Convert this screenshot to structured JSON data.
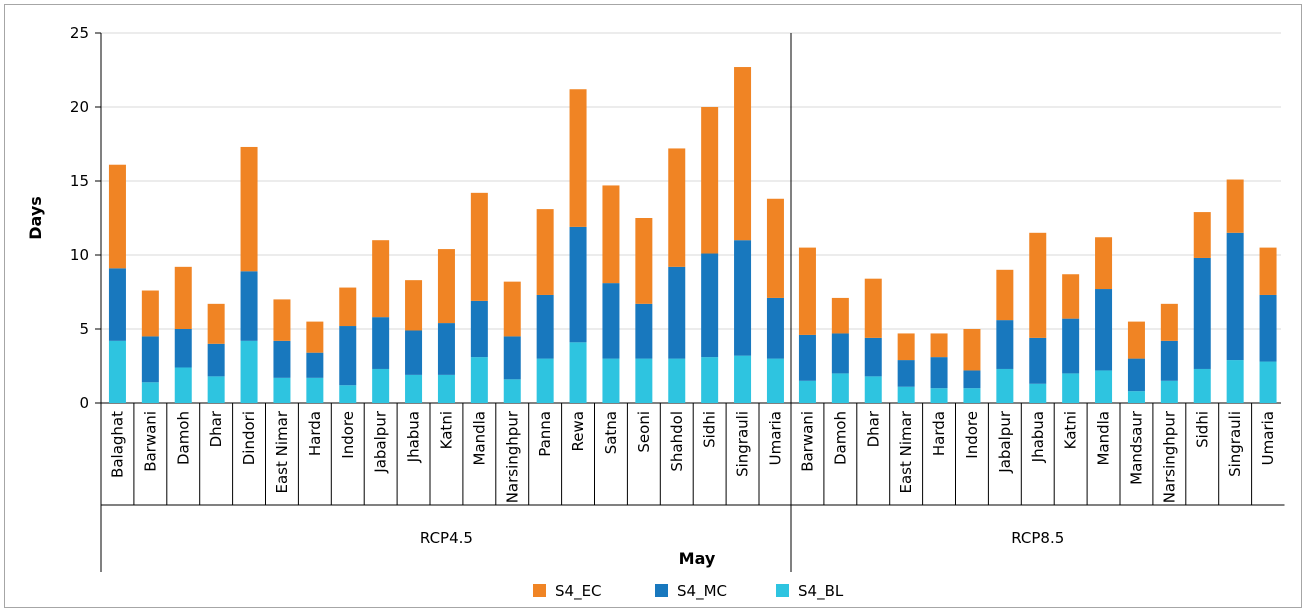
{
  "chart_data": {
    "type": "bar",
    "stacked": true,
    "xlabel": "May",
    "ylabel": "Days",
    "ylim": [
      0,
      25
    ],
    "yticks": [
      0,
      5,
      10,
      15,
      20,
      25
    ],
    "grid": true,
    "legend_position": "bottom",
    "groups": [
      {
        "label": "RCP4.5",
        "categories": [
          "Balaghat",
          "Barwani",
          "Damoh",
          "Dhar",
          "Dindori",
          "East Nimar",
          "Harda",
          "Indore",
          "Jabalpur",
          "Jhabua",
          "Katni",
          "Mandla",
          "Narsinghpur",
          "Panna",
          "Rewa",
          "Satna",
          "Seoni",
          "Shahdol",
          "Sidhi",
          "Singrauli",
          "Umaria"
        ],
        "series": [
          {
            "name": "S4_BL",
            "values": [
              4.2,
              1.4,
              2.4,
              1.8,
              4.2,
              1.7,
              1.7,
              1.2,
              2.3,
              1.9,
              1.9,
              3.1,
              1.6,
              3.0,
              4.1,
              3.0,
              3.0,
              3.0,
              3.1,
              3.2,
              3.0
            ]
          },
          {
            "name": "S4_MC",
            "values": [
              4.9,
              3.1,
              2.6,
              2.2,
              4.7,
              2.5,
              1.7,
              4.0,
              3.5,
              3.0,
              3.5,
              3.8,
              2.9,
              4.3,
              7.8,
              5.1,
              3.7,
              6.2,
              7.0,
              7.8,
              4.1
            ]
          },
          {
            "name": "S4_EC",
            "values": [
              7.0,
              3.1,
              4.2,
              2.7,
              8.4,
              2.8,
              2.1,
              2.6,
              5.2,
              3.4,
              5.0,
              7.3,
              3.7,
              5.8,
              9.3,
              6.6,
              5.8,
              8.0,
              9.9,
              11.7,
              6.7
            ]
          }
        ]
      },
      {
        "label": "RCP8.5",
        "categories": [
          "Barwani",
          "Damoh",
          "Dhar",
          "East Nimar",
          "Harda",
          "Indore",
          "Jabalpur",
          "Jhabua",
          "Katni",
          "Mandla",
          "Mandsaur",
          "Narsinghpur",
          "Sidhi",
          "Singrauli",
          "Umaria"
        ],
        "series": [
          {
            "name": "S4_BL",
            "values": [
              1.5,
              2.0,
              1.8,
              1.1,
              1.0,
              1.0,
              2.3,
              1.3,
              2.0,
              2.2,
              0.8,
              1.5,
              2.3,
              2.9,
              2.8
            ]
          },
          {
            "name": "S4_MC",
            "values": [
              3.1,
              2.7,
              2.6,
              1.8,
              2.1,
              1.2,
              3.3,
              3.1,
              3.7,
              5.5,
              2.2,
              2.7,
              7.5,
              8.6,
              4.5
            ]
          },
          {
            "name": "S4_EC",
            "values": [
              5.9,
              2.4,
              4.0,
              1.8,
              1.6,
              2.8,
              3.4,
              7.1,
              3.0,
              3.5,
              2.5,
              2.5,
              3.1,
              3.6,
              3.2
            ]
          }
        ]
      }
    ],
    "legend": [
      {
        "name": "S4_EC",
        "color": "#f08424"
      },
      {
        "name": "S4_MC",
        "color": "#1878be"
      },
      {
        "name": "S4_BL",
        "color": "#2ec4e0"
      }
    ],
    "colors": {
      "S4_EC": "#f08424",
      "S4_MC": "#1878be",
      "S4_BL": "#2ec4e0"
    }
  }
}
